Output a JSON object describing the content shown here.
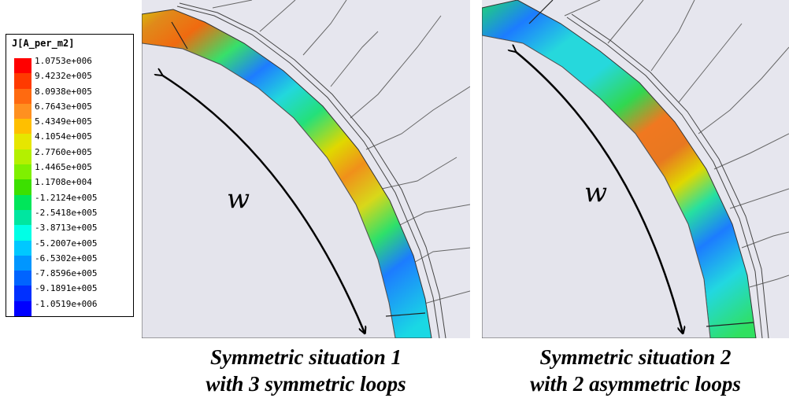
{
  "legend": {
    "title": "J[A_per_m2]",
    "labels": [
      "1.0753e+006",
      "9.4232e+005",
      "8.0938e+005",
      "6.7643e+005",
      "5.4349e+005",
      "4.1054e+005",
      "2.7760e+005",
      "1.4465e+005",
      "1.1708e+004",
      "-1.2124e+005",
      "-2.5418e+005",
      "-3.8713e+005",
      "-5.2007e+005",
      "-6.5302e+005",
      "-7.8596e+005",
      "-9.1891e+005",
      "-1.0519e+006"
    ],
    "colors": [
      "#ff0000",
      "#ff3a00",
      "#ff6a10",
      "#ff9020",
      "#ffbf00",
      "#e6e600",
      "#b4f000",
      "#7ff000",
      "#3ce000",
      "#00e65a",
      "#00e6a0",
      "#00ffe6",
      "#00c8ff",
      "#0096ff",
      "#0064ff",
      "#0030ff",
      "#0000ff"
    ]
  },
  "panels": [
    {
      "w_label": "w",
      "caption_line1": "Symmetric situation 1",
      "caption_line2": "with 3 symmetric loops"
    },
    {
      "w_label": "w",
      "caption_line1": "Symmetric situation 2",
      "caption_line2": "with 2 asymmetric loops"
    }
  ]
}
